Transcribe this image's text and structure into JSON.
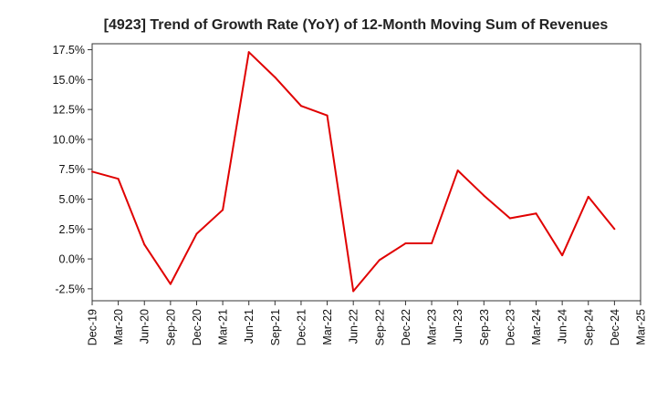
{
  "chart_data": {
    "type": "line",
    "title": "[4923]  Trend of Growth Rate (YoY) of 12-Month Moving Sum of Revenues",
    "xlabel": "",
    "ylabel": "",
    "ylim": [
      -3.5,
      18.0
    ],
    "y_ticks": [
      -2.5,
      0.0,
      2.5,
      5.0,
      7.5,
      10.0,
      12.5,
      15.0,
      17.5
    ],
    "y_tick_labels": [
      "-2.5%",
      "0.0%",
      "2.5%",
      "5.0%",
      "7.5%",
      "10.0%",
      "12.5%",
      "15.0%",
      "17.5%"
    ],
    "x_tick_labels": [
      "Dec-19",
      "Mar-20",
      "Jun-20",
      "Sep-20",
      "Dec-20",
      "Mar-21",
      "Jun-21",
      "Sep-21",
      "Dec-21",
      "Mar-22",
      "Jun-22",
      "Sep-22",
      "Dec-22",
      "Mar-23",
      "Jun-23",
      "Sep-23",
      "Dec-23",
      "Mar-24",
      "Jun-24",
      "Sep-24",
      "Dec-24",
      "Mar-25"
    ],
    "grid": true,
    "line_color": "#e00000",
    "series": [
      {
        "x": [
          "Dec-19",
          "Mar-20",
          "Jun-20",
          "Sep-20",
          "Dec-20",
          "Mar-21",
          "Jun-21",
          "Sep-21",
          "Dec-21",
          "Mar-22",
          "Jun-22",
          "Sep-22",
          "Dec-22",
          "Mar-23",
          "Jun-23",
          "Sep-23",
          "Dec-23",
          "Mar-24",
          "Jun-24",
          "Sep-24",
          "Dec-24"
        ],
        "values": [
          7.3,
          6.7,
          1.2,
          -2.1,
          2.1,
          4.1,
          17.3,
          15.2,
          12.8,
          12.0,
          -2.7,
          -0.1,
          1.3,
          1.3,
          7.4,
          5.3,
          3.4,
          3.8,
          0.3,
          5.2,
          2.5
        ]
      }
    ]
  }
}
